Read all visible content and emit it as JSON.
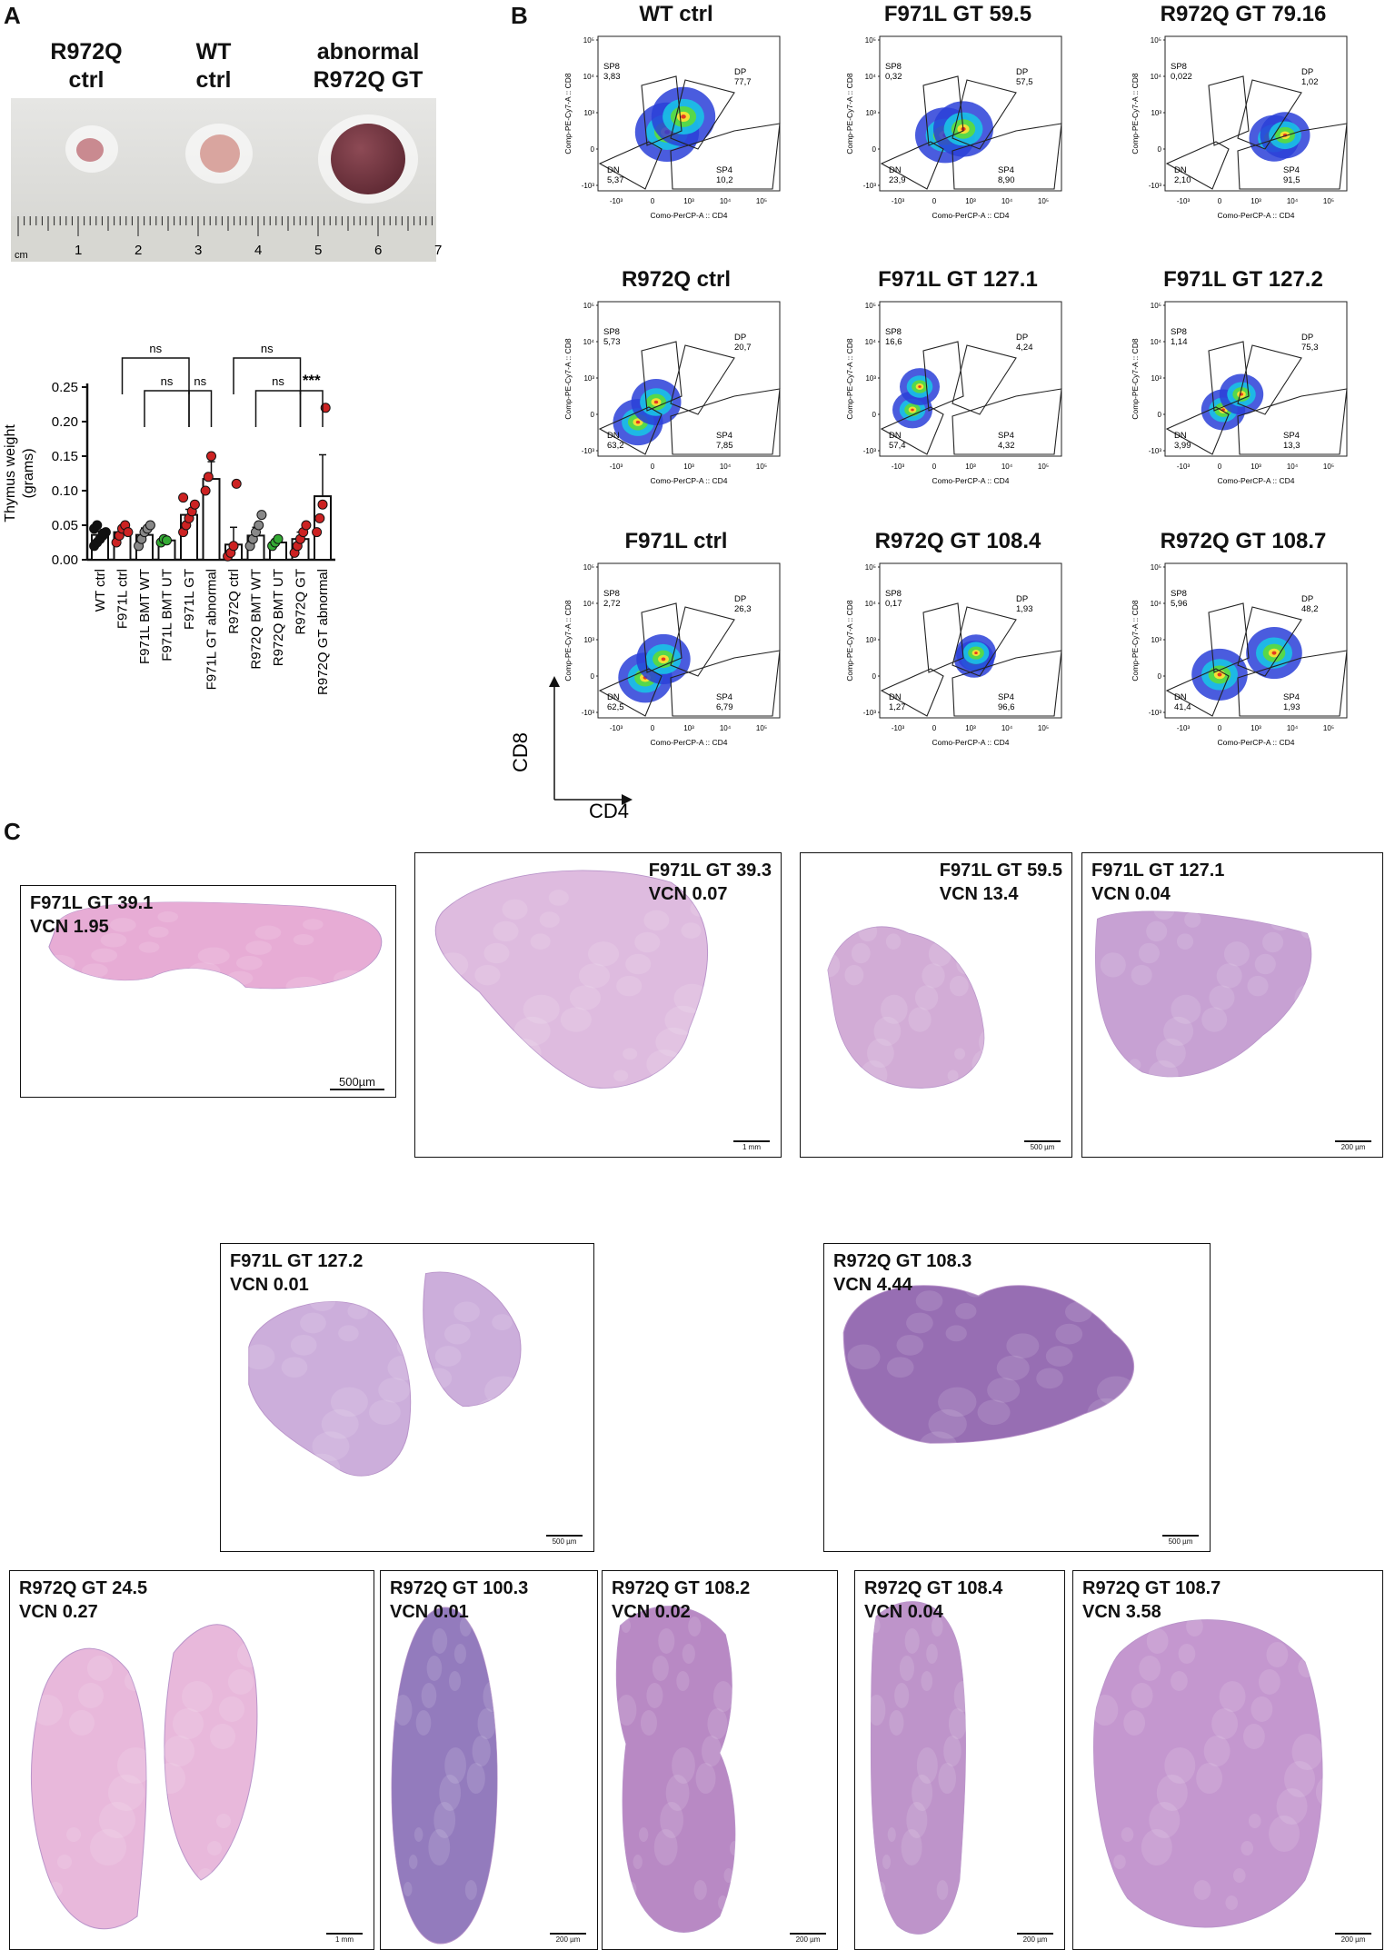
{
  "panels": {
    "a": "A",
    "b": "B",
    "c": "C"
  },
  "photo": {
    "labels": [
      "R972Q\nctrl",
      "WT\nctrl",
      "abnormal\nR972Q GT"
    ],
    "ruler_unit": "cm",
    "ruler_numbers": [
      "1",
      "2",
      "3",
      "4",
      "5",
      "6",
      "7"
    ]
  },
  "chart_data": {
    "type": "bar",
    "ylabel": "Thymus weight (grams)",
    "ylabel_lines": [
      "Thymus weight",
      "(grams)"
    ],
    "ylim": [
      0,
      0.25
    ],
    "yticks": [
      "0.00",
      "0.05",
      "0.10",
      "0.15",
      "0.20",
      "0.25"
    ],
    "categories": [
      "WT ctrl",
      "F971L ctrl",
      "F971L BMT WT",
      "F971L BMT UT",
      "F971L GT",
      "F971L GT abnormal",
      "R972Q ctrl",
      "R972Q BMT WT",
      "R972Q BMT UT",
      "R972Q GT",
      "R972Q GT abnormal"
    ],
    "values": [
      0.036,
      0.04,
      0.036,
      0.028,
      0.065,
      0.117,
      0.022,
      0.035,
      0.025,
      0.03,
      0.092
    ],
    "errors": [
      0.005,
      0.008,
      0.01,
      0.004,
      0.008,
      0.025,
      0.025,
      0.012,
      0.006,
      0.01,
      0.06
    ],
    "marker_colors": [
      "#111111",
      "#cc2222",
      "#888888",
      "#33aa33",
      "#cc2222",
      "#cc2222",
      "#cc2222",
      "#888888",
      "#33aa33",
      "#cc2222",
      "#cc2222"
    ],
    "points": [
      [
        0.02,
        0.025,
        0.03,
        0.035,
        0.04,
        0.045,
        0.05,
        0.03,
        0.038
      ],
      [
        0.025,
        0.035,
        0.045,
        0.05,
        0.04
      ],
      [
        0.02,
        0.03,
        0.04,
        0.045,
        0.05
      ],
      [
        0.025,
        0.03,
        0.028
      ],
      [
        0.04,
        0.05,
        0.06,
        0.07,
        0.08,
        0.09
      ],
      [
        0.1,
        0.12,
        0.15
      ],
      [
        0.005,
        0.01,
        0.02,
        0.11
      ],
      [
        0.02,
        0.03,
        0.04,
        0.05,
        0.065
      ],
      [
        0.02,
        0.025,
        0.03
      ],
      [
        0.01,
        0.02,
        0.03,
        0.04,
        0.05
      ],
      [
        0.04,
        0.06,
        0.08,
        0.22
      ]
    ],
    "significance": [
      {
        "from": 1,
        "to": 4,
        "label": "ns",
        "level": 0
      },
      {
        "from": 2,
        "to": 4,
        "label": "ns",
        "level": 1
      },
      {
        "from": 4,
        "to": 5,
        "label": "ns",
        "level": 1
      },
      {
        "from": 6,
        "to": 9,
        "label": "ns",
        "level": 0
      },
      {
        "from": 7,
        "to": 9,
        "label": "ns",
        "level": 1
      },
      {
        "from": 9,
        "to": 10,
        "label": "***",
        "level": 1
      }
    ]
  },
  "flow": {
    "axis_x": "Como-PerCP-A :: CD4",
    "axis_y": "Comp-PE-Cy7-A :: CD8",
    "big_x": "CD4",
    "big_y": "CD8",
    "plots": [
      {
        "title": "WT ctrl",
        "sp8": "SP8\n3,83",
        "dp": "DP\n77,7",
        "dn": "DN\n5,37",
        "sp4": "SP4\n10,2"
      },
      {
        "title": "F971L GT 59.5",
        "sp8": "SP8\n0,32",
        "dp": "DP\n57,5",
        "dn": "DN\n23,9",
        "sp4": "SP4\n8,90"
      },
      {
        "title": "R972Q GT 79.16",
        "sp8": "SP8\n0,022",
        "dp": "DP\n1,02",
        "dn": "DN\n2,10",
        "sp4": "SP4\n91,5"
      },
      {
        "title": "R972Q ctrl",
        "sp8": "SP8\n5,73",
        "dp": "DP\n20,7",
        "dn": "DN\n63,2",
        "sp4": "SP4\n7,85"
      },
      {
        "title": "F971L GT 127.1",
        "sp8": "SP8\n16,6",
        "dp": "DP\n4,24",
        "dn": "DN\n57,4",
        "sp4": "SP4\n4,32"
      },
      {
        "title": "F971L GT 127.2",
        "sp8": "SP8\n1,14",
        "dp": "DP\n75,3",
        "dn": "DN\n3,99",
        "sp4": "SP4\n13,3"
      },
      {
        "title": "F971L ctrl",
        "sp8": "SP8\n2,72",
        "dp": "DP\n26,3",
        "dn": "DN\n62,5",
        "sp4": "SP4\n6,79"
      },
      {
        "title": "R972Q GT 108.4",
        "sp8": "SP8\n0,17",
        "dp": "DP\n1,93",
        "dn": "DN\n1,27",
        "sp4": "SP4\n96,6"
      },
      {
        "title": "R972Q GT 108.7",
        "sp8": "SP8\n5,96",
        "dp": "DP\n48,2",
        "dn": "DN\n41,4",
        "sp4": "SP4\n1,93"
      }
    ]
  },
  "histology": [
    {
      "name": "F971L GT 39.1",
      "vcn": "VCN 1.95",
      "scale": "500µm",
      "color": "#e6a6d2"
    },
    {
      "name": "F971L GT 39.3",
      "vcn": "VCN 0.07",
      "scale": "1 mm",
      "color": "#dcb6dd"
    },
    {
      "name": "F971L GT 59.5",
      "vcn": "VCN 13.4",
      "scale": "500 µm",
      "color": "#cfa6d3"
    },
    {
      "name": "F971L GT 127.1",
      "vcn": "VCN 0.04",
      "scale": "200 µm",
      "color": "#c39ad0"
    },
    {
      "name": "F971L GT 127.2",
      "vcn": "VCN 0.01",
      "scale": "500 µm",
      "color": "#c8a8d8"
    },
    {
      "name": "R972Q GT 108.3",
      "vcn": "VCN 4.44",
      "scale": "500 µm",
      "color": "#8f62ad"
    },
    {
      "name": "R972Q GT 24.5",
      "vcn": "VCN 0.27",
      "scale": "1 mm",
      "color": "#e7b3d8"
    },
    {
      "name": "R972Q GT 100.3",
      "vcn": "VCN 0.01",
      "scale": "200 µm",
      "color": "#8a70b8"
    },
    {
      "name": "R972Q GT 108.2",
      "vcn": "VCN 0.02",
      "scale": "200 µm",
      "color": "#b27fc0"
    },
    {
      "name": "R972Q GT 108.4",
      "vcn": "VCN 0.04",
      "scale": "200 µm",
      "color": "#b98cc6"
    },
    {
      "name": "R972Q GT 108.7",
      "vcn": "VCN 3.58",
      "scale": "200 µm",
      "color": "#c08fcb"
    }
  ]
}
